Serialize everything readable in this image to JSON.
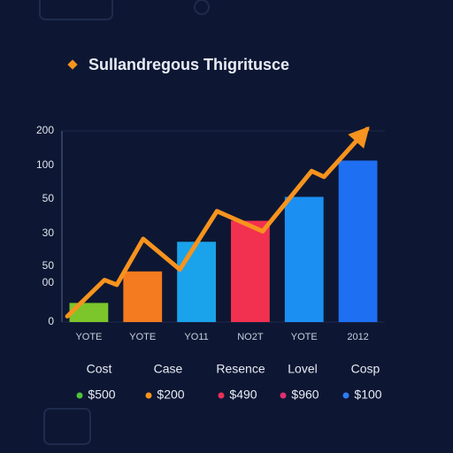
{
  "chart_data": {
    "type": "bar",
    "title": "Sullandregous Thigritusce",
    "categories": [
      "YOTE",
      "YOTE",
      "YO11",
      "NO2T",
      "YOTE",
      "2012"
    ],
    "values": [
      20,
      53,
      84,
      106,
      131,
      169
    ],
    "colors": [
      "#7cc52a",
      "#f47b20",
      "#1aa3ea",
      "#f2304f",
      "#1b90f2",
      "#1f6ff2"
    ],
    "ylim": [
      0,
      200
    ],
    "yticks": [
      0,
      200
    ],
    "y_labels": [
      "100",
      "50",
      "30",
      "50",
      "00"
    ],
    "line": {
      "color": "#f7931e",
      "x": [
        -0.4,
        0.29,
        0.52,
        1.01,
        1.69,
        2.38,
        3.23,
        4.14,
        4.37,
        5.17
      ],
      "values": [
        6,
        44,
        39,
        87,
        55,
        116,
        95,
        158,
        152,
        202
      ]
    },
    "legend": [
      {
        "label": "Cost",
        "value": "$500",
        "color": "#4fc23a"
      },
      {
        "label": "Case",
        "value": "$200",
        "color": "#f7931e"
      },
      {
        "label": "Resence",
        "value": "$490",
        "color": "#e8305a"
      },
      {
        "label": "Lovel",
        "value": "$960",
        "color": "#e0306e"
      },
      {
        "label": "Cosp",
        "value": "$100",
        "color": "#2d7cf2"
      }
    ]
  }
}
